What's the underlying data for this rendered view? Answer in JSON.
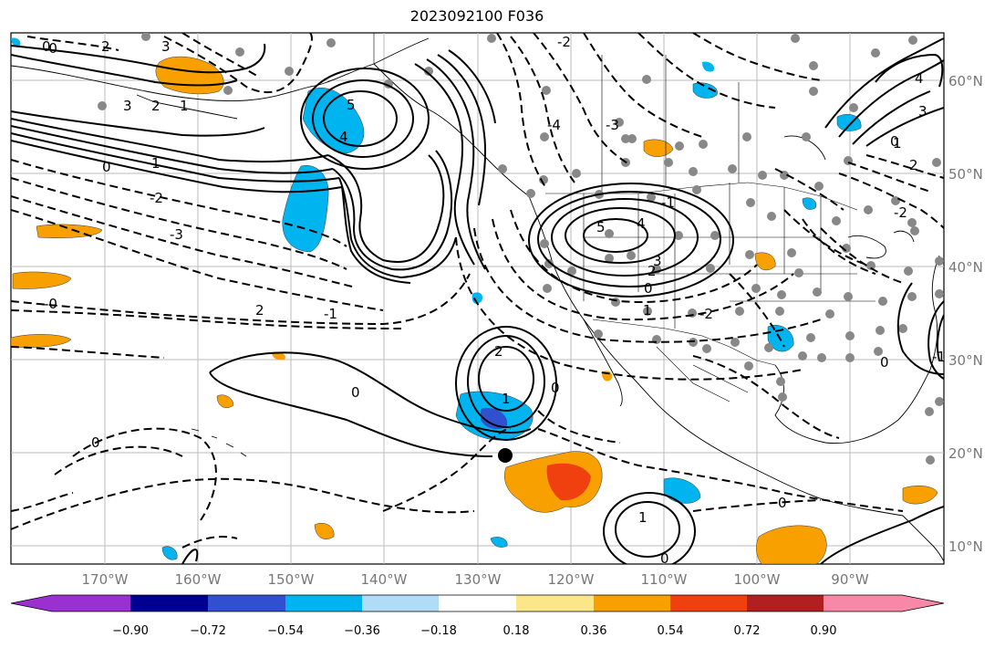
{
  "title": "2023092100 F036",
  "map": {
    "lon_ticks": [
      "170°W",
      "160°W",
      "150°W",
      "140°W",
      "130°W",
      "120°W",
      "110°W",
      "100°W",
      "90°W"
    ],
    "lat_ticks": [
      "10°N",
      "20°N",
      "30°N",
      "40°N",
      "50°N",
      "60°N"
    ],
    "contour_labels": [
      "0",
      "3",
      "2",
      "1",
      "5",
      "4",
      "3",
      "2",
      "1",
      "0",
      "-3",
      "-2",
      "-1",
      "2",
      "1",
      "0",
      "2",
      "3",
      "5",
      "4",
      "-4",
      "-3",
      "-2",
      "-1",
      "-2",
      "0",
      "1",
      "0",
      "4",
      "3",
      "2",
      "-0",
      "-1",
      "0",
      "-2",
      "0",
      "1",
      "0",
      "-0",
      "0",
      "2",
      "1",
      "0"
    ],
    "marker": "black-dot-storm-position"
  },
  "colorbar": {
    "colors": [
      "#9b30d0",
      "#000090",
      "#3050d0",
      "#00b4f0",
      "#b0dcf8",
      "#ffffff",
      "#fce68a",
      "#f8a000",
      "#f04010",
      "#b02020",
      "#f888a8"
    ],
    "labels": [
      "−0.90",
      "−0.72",
      "−0.54",
      "−0.36",
      "−0.18",
      "0.18",
      "0.36",
      "0.54",
      "0.72",
      "0.90"
    ]
  }
}
